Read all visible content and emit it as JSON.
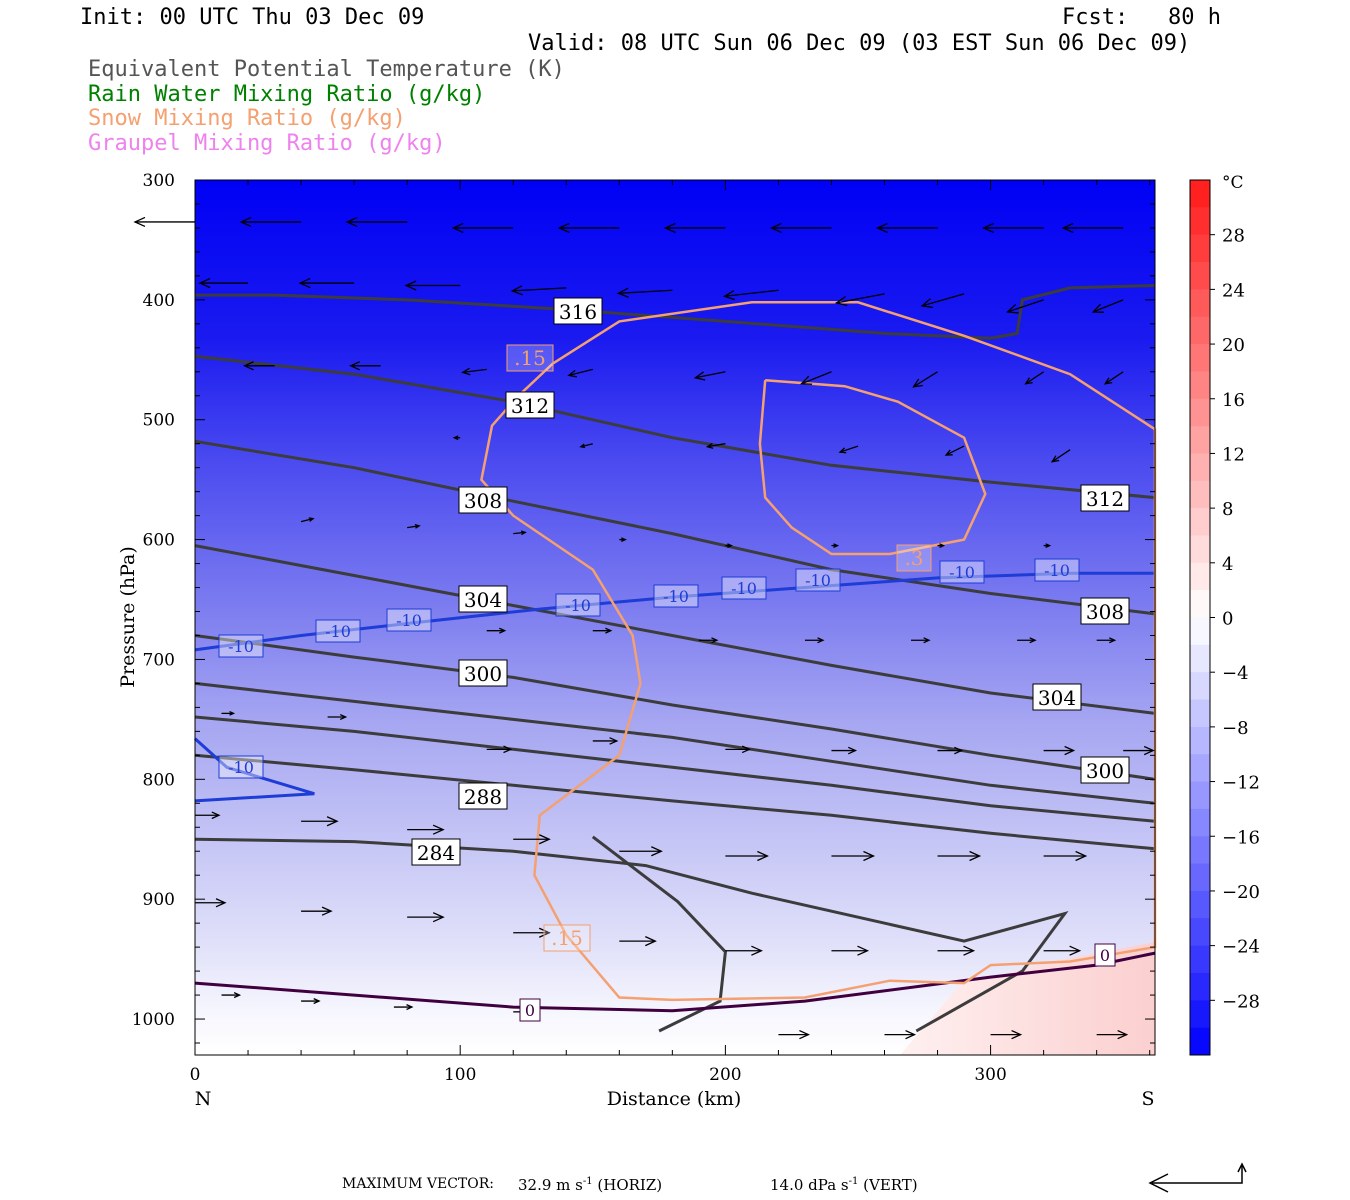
{
  "header": {
    "init": "Init: 00 UTC Thu 03 Dec 09",
    "fcst": "Fcst:   80 h",
    "valid": "Valid: 08 UTC Sun 06 Dec 09 (03 EST Sun 06 Dec 09)"
  },
  "legend": [
    {
      "label": "Equivalent Potential Temperature (K)",
      "color": "#555555"
    },
    {
      "label": "Rain Water Mixing Ratio (g/kg)",
      "color": "#008000"
    },
    {
      "label": "Snow Mixing Ratio (g/kg)",
      "color": "#f4a070"
    },
    {
      "label": "Graupel Mixing Ratio (g/kg)",
      "color": "#ee82ee"
    }
  ],
  "footer": {
    "max_vector_label": "MAXIMUM VECTOR:",
    "horiz_value": "32.9 m s",
    "horiz_unit": "(HORIZ)",
    "vert_value": "14.0 dPa s",
    "vert_unit": "(VERT)",
    "exponent": "-1"
  },
  "chart_data": {
    "type": "contour",
    "xlabel": "Distance (km)",
    "ylabel": "Pressure (hPa)",
    "xlim": [
      0,
      362
    ],
    "ylim": [
      1030,
      300
    ],
    "x_ticks": [
      0,
      100,
      200,
      300
    ],
    "y_ticks": [
      300,
      400,
      500,
      600,
      700,
      800,
      900,
      1000
    ],
    "x_end_labels": {
      "left": "N",
      "right": "S"
    },
    "colorbar": {
      "unit": "°C",
      "ticks": [
        28,
        24,
        20,
        16,
        12,
        8,
        4,
        0,
        -4,
        -8,
        -12,
        -16,
        -20,
        -24,
        -28
      ],
      "range": [
        -32,
        32
      ]
    },
    "theta_e_contours": [
      {
        "label": "316",
        "points": [
          [
            0,
            396
          ],
          [
            30,
            396
          ],
          [
            80,
            400
          ],
          [
            140,
            408
          ],
          [
            200,
            418
          ],
          [
            260,
            428
          ],
          [
            300,
            432
          ],
          [
            310,
            428
          ],
          [
            312,
            400
          ],
          [
            330,
            390
          ],
          [
            362,
            388
          ]
        ]
      },
      {
        "label": "312",
        "points": [
          [
            0,
            447
          ],
          [
            60,
            462
          ],
          [
            120,
            485
          ],
          [
            180,
            515
          ],
          [
            240,
            538
          ],
          [
            300,
            552
          ],
          [
            362,
            565
          ]
        ]
      },
      {
        "label": "308",
        "points": [
          [
            0,
            518
          ],
          [
            60,
            540
          ],
          [
            120,
            568
          ],
          [
            180,
            595
          ],
          [
            240,
            625
          ],
          [
            300,
            645
          ],
          [
            362,
            662
          ]
        ]
      },
      {
        "label": "304",
        "points": [
          [
            0,
            605
          ],
          [
            60,
            630
          ],
          [
            120,
            655
          ],
          [
            180,
            680
          ],
          [
            240,
            705
          ],
          [
            300,
            728
          ],
          [
            362,
            745
          ]
        ]
      },
      {
        "label": "300",
        "points": [
          [
            0,
            680
          ],
          [
            60,
            698
          ],
          [
            120,
            715
          ],
          [
            180,
            738
          ],
          [
            240,
            758
          ],
          [
            300,
            780
          ],
          [
            362,
            800
          ]
        ]
      },
      {
        "label": "",
        "points": [
          [
            0,
            720
          ],
          [
            60,
            735
          ],
          [
            120,
            750
          ],
          [
            180,
            765
          ],
          [
            240,
            785
          ],
          [
            300,
            805
          ],
          [
            362,
            820
          ]
        ]
      },
      {
        "label": "",
        "points": [
          [
            0,
            748
          ],
          [
            60,
            760
          ],
          [
            120,
            775
          ],
          [
            180,
            790
          ],
          [
            240,
            805
          ],
          [
            300,
            822
          ],
          [
            362,
            835
          ]
        ]
      },
      {
        "label": "288",
        "points": [
          [
            0,
            780
          ],
          [
            60,
            792
          ],
          [
            120,
            805
          ],
          [
            180,
            818
          ],
          [
            240,
            830
          ],
          [
            300,
            845
          ],
          [
            362,
            858
          ]
        ]
      },
      {
        "label": "284",
        "points": [
          [
            0,
            850
          ],
          [
            60,
            852
          ],
          [
            120,
            860
          ],
          [
            170,
            872
          ],
          [
            210,
            895
          ],
          [
            240,
            910
          ],
          [
            290,
            935
          ],
          [
            328,
            912
          ],
          [
            312,
            960
          ],
          [
            272,
            1010
          ]
        ]
      }
    ],
    "theta_e_contour_extra": [
      [
        150,
        848
      ],
      [
        182,
        902
      ],
      [
        200,
        944
      ],
      [
        198,
        985
      ],
      [
        175,
        1010
      ]
    ],
    "snow_contours": [
      {
        "label": ".15",
        "points": [
          [
            135,
            453
          ],
          [
            160,
            418
          ],
          [
            210,
            402
          ],
          [
            250,
            402
          ],
          [
            290,
            430
          ],
          [
            330,
            462
          ],
          [
            362,
            508
          ],
          [
            362,
            940
          ],
          [
            330,
            952
          ],
          [
            300,
            955
          ],
          [
            290,
            970
          ],
          [
            262,
            968
          ],
          [
            230,
            982
          ],
          [
            180,
            984
          ],
          [
            160,
            982
          ],
          [
            140,
            930
          ],
          [
            128,
            880
          ],
          [
            130,
            830
          ],
          [
            160,
            780
          ],
          [
            168,
            720
          ],
          [
            165,
            680
          ],
          [
            150,
            625
          ],
          [
            120,
            580
          ],
          [
            108,
            550
          ],
          [
            112,
            505
          ],
          [
            122,
            480
          ],
          [
            135,
            453
          ]
        ]
      },
      {
        "label": ".3",
        "points": [
          [
            215,
            467
          ],
          [
            245,
            472
          ],
          [
            265,
            485
          ],
          [
            290,
            515
          ],
          [
            298,
            562
          ],
          [
            290,
            600
          ],
          [
            262,
            612
          ],
          [
            240,
            612
          ],
          [
            225,
            590
          ],
          [
            215,
            565
          ],
          [
            213,
            520
          ],
          [
            215,
            467
          ]
        ]
      }
    ],
    "temperature_contours": [
      {
        "label": "-10",
        "color": "#1e3cd6",
        "points": [
          [
            0,
            692
          ],
          [
            40,
            680
          ],
          [
            80,
            670
          ],
          [
            130,
            658
          ],
          [
            180,
            648
          ],
          [
            230,
            640
          ],
          [
            280,
            632
          ],
          [
            330,
            628
          ],
          [
            362,
            628
          ]
        ]
      },
      {
        "label": "-10",
        "color": "#1e3cd6",
        "points": [
          [
            0,
            766
          ],
          [
            12,
            790
          ],
          [
            45,
            812
          ],
          [
            0,
            818
          ]
        ]
      },
      {
        "label": "0",
        "color": "#400040",
        "points": [
          [
            0,
            970
          ],
          [
            60,
            980
          ],
          [
            120,
            990
          ],
          [
            180,
            993
          ],
          [
            230,
            985
          ],
          [
            300,
            965
          ],
          [
            340,
            955
          ],
          [
            362,
            945
          ]
        ]
      }
    ],
    "wind_arrows": [
      {
        "x": 0,
        "p": 335,
        "u": -1.0,
        "w": 0.0
      },
      {
        "x": 40,
        "p": 335,
        "u": -1.0,
        "w": 0.0
      },
      {
        "x": 80,
        "p": 335,
        "u": -1.0,
        "w": 0.0
      },
      {
        "x": 120,
        "p": 340,
        "u": -1.0,
        "w": 0.0
      },
      {
        "x": 160,
        "p": 340,
        "u": -1.0,
        "w": 0.0
      },
      {
        "x": 200,
        "p": 340,
        "u": -1.0,
        "w": 0.0
      },
      {
        "x": 240,
        "p": 340,
        "u": -1.0,
        "w": 0.0
      },
      {
        "x": 280,
        "p": 340,
        "u": -1.0,
        "w": 0.0
      },
      {
        "x": 320,
        "p": 340,
        "u": -1.0,
        "w": 0.0
      },
      {
        "x": 350,
        "p": 340,
        "u": -1.0,
        "w": 0.0
      },
      {
        "x": 20,
        "p": 386,
        "u": -0.8,
        "w": 0.0
      },
      {
        "x": 60,
        "p": 386,
        "u": -0.9,
        "w": 0.0
      },
      {
        "x": 100,
        "p": 388,
        "u": -0.9,
        "w": 0.0
      },
      {
        "x": 140,
        "p": 390,
        "u": -0.9,
        "w": 0.05
      },
      {
        "x": 180,
        "p": 392,
        "u": -0.9,
        "w": 0.05
      },
      {
        "x": 220,
        "p": 392,
        "u": -0.9,
        "w": 0.1
      },
      {
        "x": 260,
        "p": 395,
        "u": -0.8,
        "w": 0.15
      },
      {
        "x": 290,
        "p": 395,
        "u": -0.7,
        "w": 0.2
      },
      {
        "x": 320,
        "p": 400,
        "u": -0.6,
        "w": 0.2
      },
      {
        "x": 350,
        "p": 400,
        "u": -0.5,
        "w": 0.2
      },
      {
        "x": 30,
        "p": 455,
        "u": -0.5,
        "w": 0.0
      },
      {
        "x": 70,
        "p": 455,
        "u": -0.5,
        "w": 0.0
      },
      {
        "x": 110,
        "p": 458,
        "u": -0.4,
        "w": 0.05
      },
      {
        "x": 150,
        "p": 458,
        "u": -0.4,
        "w": 0.1
      },
      {
        "x": 200,
        "p": 460,
        "u": -0.5,
        "w": 0.1
      },
      {
        "x": 240,
        "p": 460,
        "u": -0.5,
        "w": 0.2
      },
      {
        "x": 280,
        "p": 460,
        "u": -0.4,
        "w": 0.25
      },
      {
        "x": 320,
        "p": 460,
        "u": -0.3,
        "w": 0.2
      },
      {
        "x": 350,
        "p": 460,
        "u": -0.3,
        "w": 0.2
      },
      {
        "x": 100,
        "p": 515,
        "u": -0.1,
        "w": 0.0
      },
      {
        "x": 150,
        "p": 520,
        "u": -0.2,
        "w": 0.05
      },
      {
        "x": 200,
        "p": 520,
        "u": -0.3,
        "w": 0.05
      },
      {
        "x": 250,
        "p": 522,
        "u": -0.3,
        "w": 0.1
      },
      {
        "x": 290,
        "p": 522,
        "u": -0.3,
        "w": 0.15
      },
      {
        "x": 330,
        "p": 525,
        "u": -0.3,
        "w": 0.2
      },
      {
        "x": 40,
        "p": 585,
        "u": 0.2,
        "w": -0.05
      },
      {
        "x": 80,
        "p": 590,
        "u": 0.2,
        "w": -0.03
      },
      {
        "x": 120,
        "p": 595,
        "u": 0.2,
        "w": -0.02
      },
      {
        "x": 160,
        "p": 600,
        "u": 0.1,
        "w": 0.0
      },
      {
        "x": 200,
        "p": 605,
        "u": 0.1,
        "w": 0.0
      },
      {
        "x": 240,
        "p": 605,
        "u": 0.1,
        "w": 0.0
      },
      {
        "x": 280,
        "p": 605,
        "u": 0.1,
        "w": 0.0
      },
      {
        "x": 320,
        "p": 605,
        "u": 0.1,
        "w": 0.0
      },
      {
        "x": 110,
        "p": 676,
        "u": 0.3,
        "w": 0.0
      },
      {
        "x": 150,
        "p": 676,
        "u": 0.3,
        "w": 0.0
      },
      {
        "x": 190,
        "p": 684,
        "u": 0.3,
        "w": 0.0
      },
      {
        "x": 230,
        "p": 684,
        "u": 0.3,
        "w": 0.0
      },
      {
        "x": 270,
        "p": 684,
        "u": 0.3,
        "w": 0.0
      },
      {
        "x": 310,
        "p": 684,
        "u": 0.3,
        "w": 0.0
      },
      {
        "x": 340,
        "p": 684,
        "u": 0.3,
        "w": 0.0
      },
      {
        "x": 10,
        "p": 745,
        "u": 0.2,
        "w": 0.0
      },
      {
        "x": 50,
        "p": 748,
        "u": 0.3,
        "w": 0.0
      },
      {
        "x": 110,
        "p": 775,
        "u": 0.4,
        "w": 0.0
      },
      {
        "x": 150,
        "p": 768,
        "u": 0.4,
        "w": 0.0
      },
      {
        "x": 200,
        "p": 775,
        "u": 0.4,
        "w": 0.0
      },
      {
        "x": 240,
        "p": 776,
        "u": 0.4,
        "w": 0.0
      },
      {
        "x": 280,
        "p": 776,
        "u": 0.4,
        "w": 0.0
      },
      {
        "x": 320,
        "p": 776,
        "u": 0.5,
        "w": 0.0
      },
      {
        "x": 350,
        "p": 776,
        "u": 0.5,
        "w": 0.0
      },
      {
        "x": 0,
        "p": 830,
        "u": 0.4,
        "w": 0.0
      },
      {
        "x": 40,
        "p": 835,
        "u": 0.6,
        "w": 0.0
      },
      {
        "x": 80,
        "p": 842,
        "u": 0.6,
        "w": 0.0
      },
      {
        "x": 120,
        "p": 850,
        "u": 0.6,
        "w": 0.0
      },
      {
        "x": 160,
        "p": 860,
        "u": 0.7,
        "w": 0.0
      },
      {
        "x": 200,
        "p": 864,
        "u": 0.7,
        "w": 0.0
      },
      {
        "x": 240,
        "p": 864,
        "u": 0.7,
        "w": 0.0
      },
      {
        "x": 280,
        "p": 864,
        "u": 0.7,
        "w": 0.0
      },
      {
        "x": 320,
        "p": 864,
        "u": 0.7,
        "w": 0.0
      },
      {
        "x": 0,
        "p": 903,
        "u": 0.5,
        "w": 0.0
      },
      {
        "x": 40,
        "p": 910,
        "u": 0.5,
        "w": 0.0
      },
      {
        "x": 80,
        "p": 915,
        "u": 0.6,
        "w": 0.0
      },
      {
        "x": 120,
        "p": 928,
        "u": 0.6,
        "w": 0.0
      },
      {
        "x": 160,
        "p": 935,
        "u": 0.6,
        "w": 0.0
      },
      {
        "x": 200,
        "p": 943,
        "u": 0.6,
        "w": 0.0
      },
      {
        "x": 240,
        "p": 943,
        "u": 0.6,
        "w": 0.0
      },
      {
        "x": 280,
        "p": 943,
        "u": 0.6,
        "w": 0.0
      },
      {
        "x": 320,
        "p": 943,
        "u": 0.6,
        "w": 0.0
      },
      {
        "x": 10,
        "p": 980,
        "u": 0.3,
        "w": 0.0
      },
      {
        "x": 40,
        "p": 985,
        "u": 0.3,
        "w": 0.0
      },
      {
        "x": 75,
        "p": 990,
        "u": 0.3,
        "w": 0.0
      },
      {
        "x": 120,
        "p": 994,
        "u": 0.2,
        "w": 0.0
      },
      {
        "x": 220,
        "p": 1013,
        "u": 0.5,
        "w": 0.0
      },
      {
        "x": 260,
        "p": 1013,
        "u": 0.5,
        "w": 0.0
      },
      {
        "x": 300,
        "p": 1013,
        "u": 0.5,
        "w": 0.0
      },
      {
        "x": 340,
        "p": 1013,
        "u": 0.5,
        "w": 0.0
      }
    ]
  }
}
